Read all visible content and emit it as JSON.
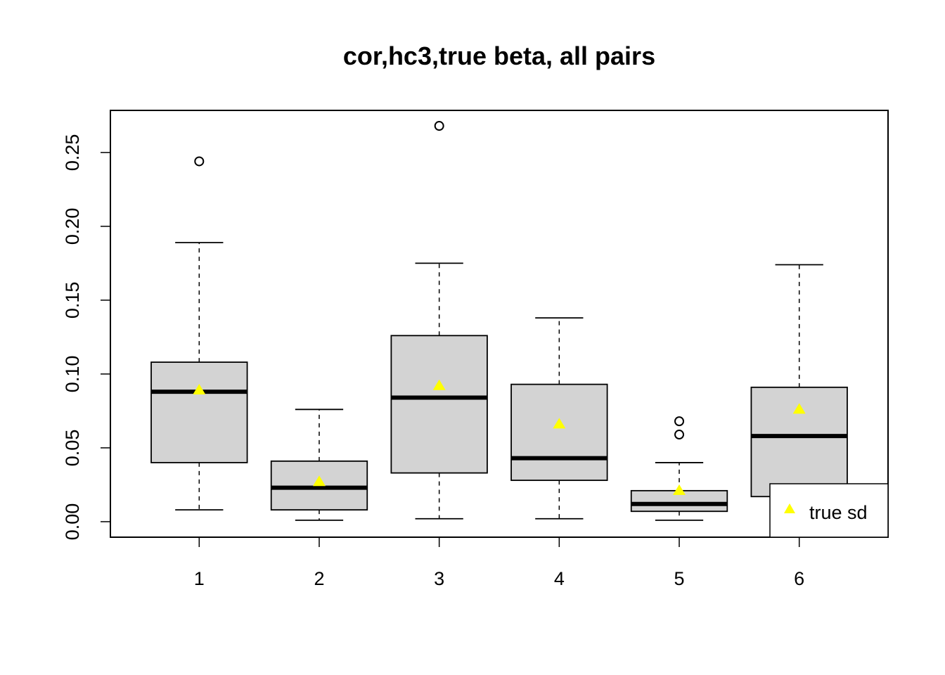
{
  "chart_data": {
    "type": "boxplot",
    "title": "cor,hc3,true beta, all pairs",
    "xlabel": "",
    "ylabel": "",
    "ylim": [
      -0.0105,
      0.2785
    ],
    "xlim": [
      0.26,
      6.74
    ],
    "yticks": [
      0,
      0.05,
      0.1,
      0.15,
      0.2,
      0.25
    ],
    "ytick_labels": [
      "0.00",
      "0.05",
      "0.10",
      "0.15",
      "0.20",
      "0.25"
    ],
    "categories": [
      "1",
      "2",
      "3",
      "4",
      "5",
      "6"
    ],
    "boxes": [
      {
        "category": "1",
        "whisker_low": 0.008,
        "q1": 0.04,
        "median": 0.088,
        "q3": 0.108,
        "whisker_high": 0.189,
        "outliers": [
          0.244
        ]
      },
      {
        "category": "2",
        "whisker_low": 0.001,
        "q1": 0.008,
        "median": 0.023,
        "q3": 0.041,
        "whisker_high": 0.076,
        "outliers": []
      },
      {
        "category": "3",
        "whisker_low": 0.002,
        "q1": 0.033,
        "median": 0.084,
        "q3": 0.126,
        "whisker_high": 0.175,
        "outliers": [
          0.268
        ]
      },
      {
        "category": "4",
        "whisker_low": 0.002,
        "q1": 0.028,
        "median": 0.043,
        "q3": 0.093,
        "whisker_high": 0.138,
        "outliers": []
      },
      {
        "category": "5",
        "whisker_low": 0.001,
        "q1": 0.007,
        "median": 0.012,
        "q3": 0.021,
        "whisker_high": 0.04,
        "outliers": [
          0.059,
          0.068
        ]
      },
      {
        "category": "6",
        "whisker_low": 0.0,
        "q1": 0.017,
        "median": 0.058,
        "q3": 0.091,
        "whisker_high": 0.174,
        "outliers": []
      }
    ],
    "true_sd": [
      0.089,
      0.027,
      0.092,
      0.066,
      0.021,
      0.076
    ],
    "legend": {
      "position": "bottom-right",
      "label": "true sd"
    },
    "colors": {
      "box_fill": "#d3d3d3",
      "marker": "#ffff00",
      "line": "#000000"
    },
    "grid": false
  }
}
